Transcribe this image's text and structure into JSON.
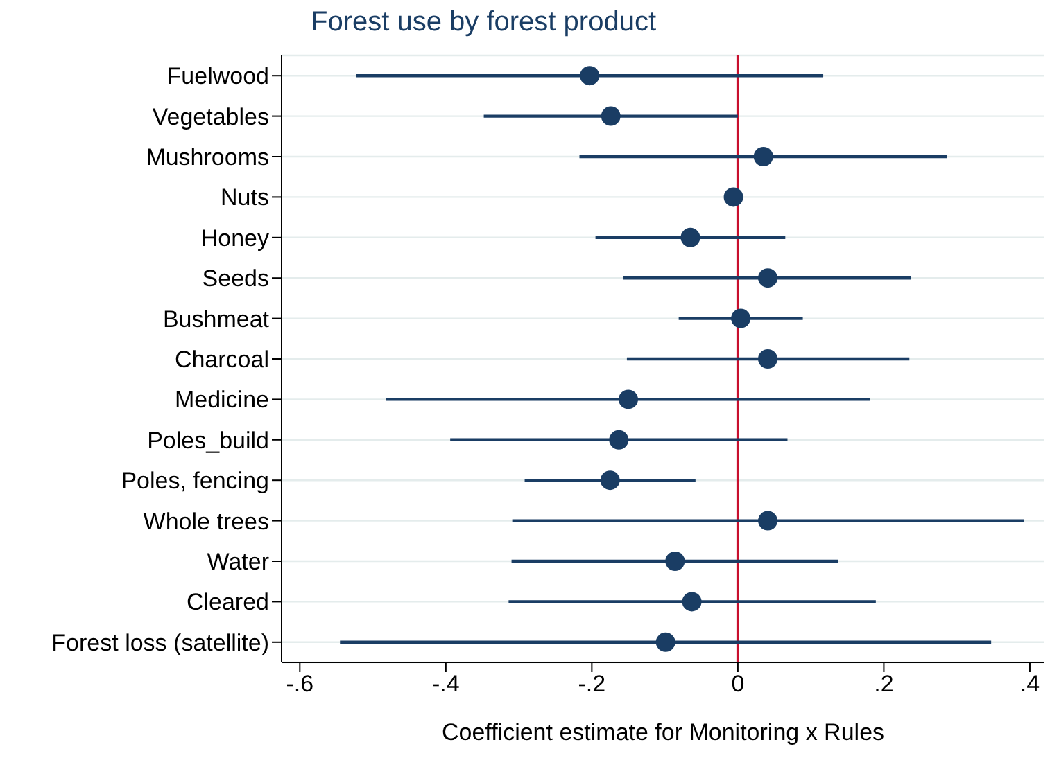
{
  "chart_data": {
    "type": "scatter",
    "orientation": "horizontal",
    "title": "Forest use by forest product",
    "xlabel": "Coefficient estimate for Monitoring x Rules",
    "categories": [
      "Fuelwood",
      "Vegetables",
      "Mushrooms",
      "Nuts",
      "Honey",
      "Seeds",
      "Bushmeat",
      "Charcoal",
      "Medicine",
      "Poles_build",
      "Poles, fencing",
      "Whole trees",
      "Water",
      "Cleared",
      "Forest loss (satellite)"
    ],
    "values": [
      -0.203,
      -0.174,
      0.035,
      -0.006,
      -0.065,
      0.041,
      0.004,
      0.041,
      -0.15,
      -0.163,
      -0.175,
      0.041,
      -0.086,
      -0.063,
      -0.099
    ],
    "errors": [
      [
        -0.523,
        0.117
      ],
      [
        -0.348,
        0
      ],
      [
        -0.217,
        0.287
      ],
      null,
      [
        -0.195,
        0.065
      ],
      [
        -0.157,
        0.237
      ],
      [
        -0.081,
        0.089
      ],
      [
        -0.152,
        0.235
      ],
      [
        -0.482,
        0.181
      ],
      [
        -0.394,
        0.068
      ],
      [
        -0.292,
        -0.058
      ],
      [
        -0.309,
        0.392
      ],
      [
        -0.31,
        0.137
      ],
      [
        -0.314,
        0.189
      ],
      [
        -0.545,
        0.347
      ]
    ],
    "color": "#1a3d64",
    "marker": "circle",
    "xlim": [
      -0.625,
      0.42
    ],
    "xticks": [
      {
        "value": -0.6,
        "label": "-.6"
      },
      {
        "value": -0.4,
        "label": "-.4"
      },
      {
        "value": -0.2,
        "label": "-.2"
      },
      0,
      {
        "value": 0.2,
        "label": ".2"
      },
      {
        "value": 0.4,
        "label": ".4"
      }
    ],
    "ref_lines": [
      {
        "axis": "x",
        "value": 0,
        "color": "#c8102e"
      }
    ],
    "grid": "y",
    "legend": false
  }
}
